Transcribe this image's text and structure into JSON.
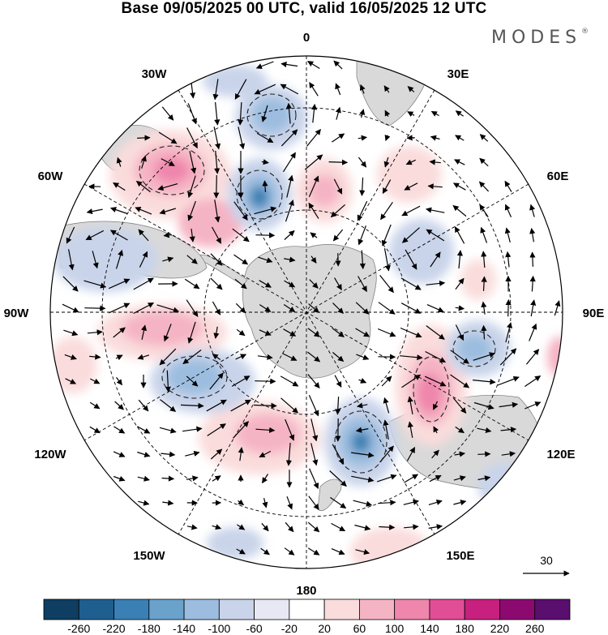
{
  "title": "Base 09/05/2025 00 UTC, valid 16/05/2025 12 UTC",
  "brand": "MODES",
  "brand_mark": "®",
  "map": {
    "projection": "south-polar-stereographic",
    "longitude_labels": {
      "top": "0",
      "top_left": "30W",
      "top_right": "30E",
      "upper_left": "60W",
      "upper_right": "60E",
      "left": "90W",
      "right": "90E",
      "lower_left": "120W",
      "lower_right": "120E",
      "bottom_left": "150W",
      "bottom_right": "150E",
      "bottom": "180"
    },
    "reference_vector": {
      "label": "30",
      "magnitude": 30
    }
  },
  "colorbar": {
    "ticks": [
      "-260",
      "-220",
      "-180",
      "-140",
      "-100",
      "-60",
      "-20",
      "20",
      "60",
      "100",
      "140",
      "180",
      "220",
      "260"
    ],
    "colors": [
      "#0e3e62",
      "#1e5f8f",
      "#3a80b4",
      "#6aa2cc",
      "#9cbddf",
      "#c9d4ea",
      "#e8e8f4",
      "#ffffff",
      "#fadcdc",
      "#f5b4c4",
      "#ef86ac",
      "#e24e96",
      "#c8207e",
      "#8c0a70",
      "#5a0e6e"
    ],
    "colors_note": "blue for negative, pink/purple for positive"
  },
  "colors": {
    "land": "#d9d9d9",
    "negative_anomaly": "#9cbddf",
    "positive_anomaly": "#ef86ac"
  }
}
